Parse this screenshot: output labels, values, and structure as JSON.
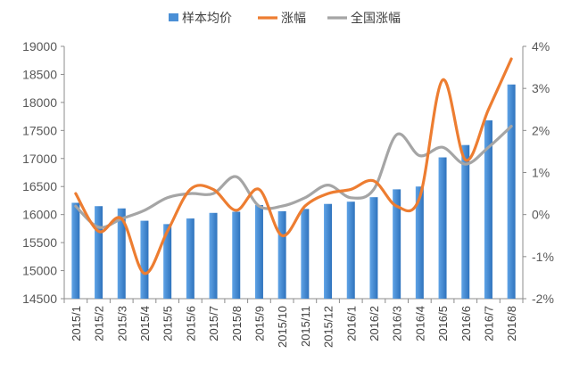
{
  "chart_data": {
    "type": "bar",
    "title": "",
    "categories": [
      "2015/1",
      "2015/2",
      "2015/3",
      "2015/4",
      "2015/5",
      "2015/6",
      "2015/7",
      "2015/8",
      "2015/9",
      "2015/10",
      "2015/11",
      "2015/12",
      "2016/1",
      "2016/2",
      "2016/3",
      "2016/4",
      "2016/5",
      "2016/6",
      "2016/7",
      "2016/8"
    ],
    "series": [
      {
        "name": "样本均价",
        "type": "bar",
        "axis": "left",
        "color": "#4a8fd6",
        "values": [
          16210,
          16150,
          16110,
          15890,
          15830,
          15930,
          16030,
          16050,
          16170,
          16060,
          16100,
          16190,
          16230,
          16310,
          16450,
          16500,
          17020,
          17240,
          17680,
          18320
        ]
      },
      {
        "name": "涨幅",
        "type": "line",
        "axis": "right",
        "color": "#ed7d31",
        "values": [
          0.5,
          -0.4,
          -0.1,
          -1.4,
          -0.4,
          0.6,
          0.6,
          0.1,
          0.6,
          -0.5,
          0.2,
          0.5,
          0.6,
          0.8,
          0.2,
          0.4,
          3.2,
          1.3,
          2.5,
          3.7
        ]
      },
      {
        "name": "全国涨幅",
        "type": "line",
        "axis": "right",
        "color": "#a5a5a5",
        "values": [
          0.2,
          -0.3,
          -0.1,
          0.1,
          0.4,
          0.5,
          0.5,
          0.9,
          0.2,
          0.2,
          0.4,
          0.7,
          0.4,
          0.6,
          1.9,
          1.4,
          1.6,
          1.2,
          1.6,
          2.1
        ]
      }
    ],
    "y_left": {
      "min": 14500,
      "max": 19000,
      "step": 500,
      "tick_labels": [
        "14500",
        "15000",
        "15500",
        "16000",
        "16500",
        "17000",
        "17500",
        "18000",
        "18500",
        "19000"
      ]
    },
    "y_right": {
      "min": -2,
      "max": 4,
      "step": 1,
      "tick_labels": [
        "-2%",
        "-1%",
        "0%",
        "1%",
        "2%",
        "3%",
        "4%"
      ]
    },
    "grid": false,
    "legend": {
      "position": "top",
      "items": [
        "样本均价",
        "涨幅",
        "全国涨幅"
      ]
    }
  }
}
